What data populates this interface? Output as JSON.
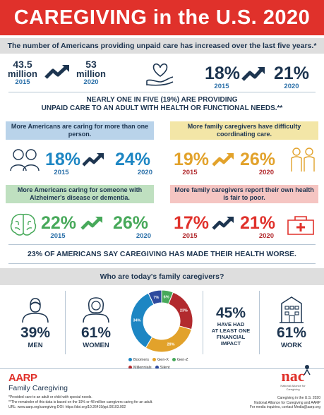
{
  "header": {
    "title": "CAREGIVING in the U.S. 2020"
  },
  "intro": {
    "text": "The number of Americans providing unpaid care has increased over the last five years.*"
  },
  "row1": {
    "a_value": "43.5",
    "a_unit": "million",
    "a_year": "2015",
    "b_value": "53",
    "b_unit": "million",
    "b_year": "2020",
    "c_pct": "18%",
    "c_year": "2015",
    "d_pct": "21%",
    "d_year": "2020"
  },
  "statement1": {
    "line1": "NEARLY ONE IN FIVE (19%) ARE PROVIDING",
    "line2": "UNPAID CARE TO AN ADULT WITH HEALTH OR FUNCTIONAL NEEDS.**"
  },
  "cards": [
    {
      "title": "More Americans are caring for more than one person.",
      "from_pct": "18%",
      "from_year": "2015",
      "to_pct": "24%",
      "to_year": "2020"
    },
    {
      "title": "More family caregivers have difficulty coordinating care.",
      "from_pct": "19%",
      "from_year": "2015",
      "to_pct": "26%",
      "to_year": "2020"
    },
    {
      "title": "More Americans caring for someone with Alzheimer's disease or dementia.",
      "from_pct": "22%",
      "from_year": "2015",
      "to_pct": "26%",
      "to_year": "2020"
    },
    {
      "title": "More family caregivers report their own health is fair to poor.",
      "from_pct": "17%",
      "from_year": "2015",
      "to_pct": "21%",
      "to_year": "2020"
    }
  ],
  "statement2": {
    "text": "23% OF AMERICANS SAY CAREGIVING HAS MADE THEIR HEALTH WORSE."
  },
  "who": {
    "title": "Who are today's family caregivers?"
  },
  "stats": {
    "men_pct": "39%",
    "men_label": "MEN",
    "women_pct": "61%",
    "women_label": "WOMEN",
    "fin_pct": "45%",
    "fin_l1": "HAVE HAD",
    "fin_l2": "AT LEAST ONE",
    "fin_l3": "FINANCIAL IMPACT",
    "work_pct": "61%",
    "work_label": "WORK"
  },
  "chart_data": {
    "type": "pie",
    "categories": [
      "Boomers",
      "Gen-X",
      "Gen-Z",
      "Millennials",
      "Silent"
    ],
    "values": [
      34,
      29,
      6,
      23,
      7
    ],
    "colors": [
      "#1d86c3",
      "#e2a22b",
      "#47a95a",
      "#b22a2e",
      "#2e4a9e"
    ],
    "labels": [
      "34%",
      "29%",
      "6%",
      "23%",
      "7%"
    ],
    "legend_placement": "bottom"
  },
  "footer": {
    "brand": "AARP",
    "brand_sub": "Family Caregiving",
    "note1": "*Provided care to an adult or child with special needs.",
    "note2": "**The remainder of this data is based on the 19% or 48 million caregivers caring for an adult.",
    "url": "URL: www.aarp.org/caregiving   DOI: https://doi.org/10.26419/ppi.00103.002",
    "nac_logo": "nac",
    "nac_sub": "National Alliance for Caregiving",
    "right1": "Caregiving in the U.S. 2020",
    "right2": "National Alliance for Caregiving and AARP",
    "right3": "For media inquiries, contact Media@aarp.org"
  },
  "icons": {
    "arrow": "up-trend-arrow-icon",
    "heart_hand": "heart-in-hand-icon"
  }
}
